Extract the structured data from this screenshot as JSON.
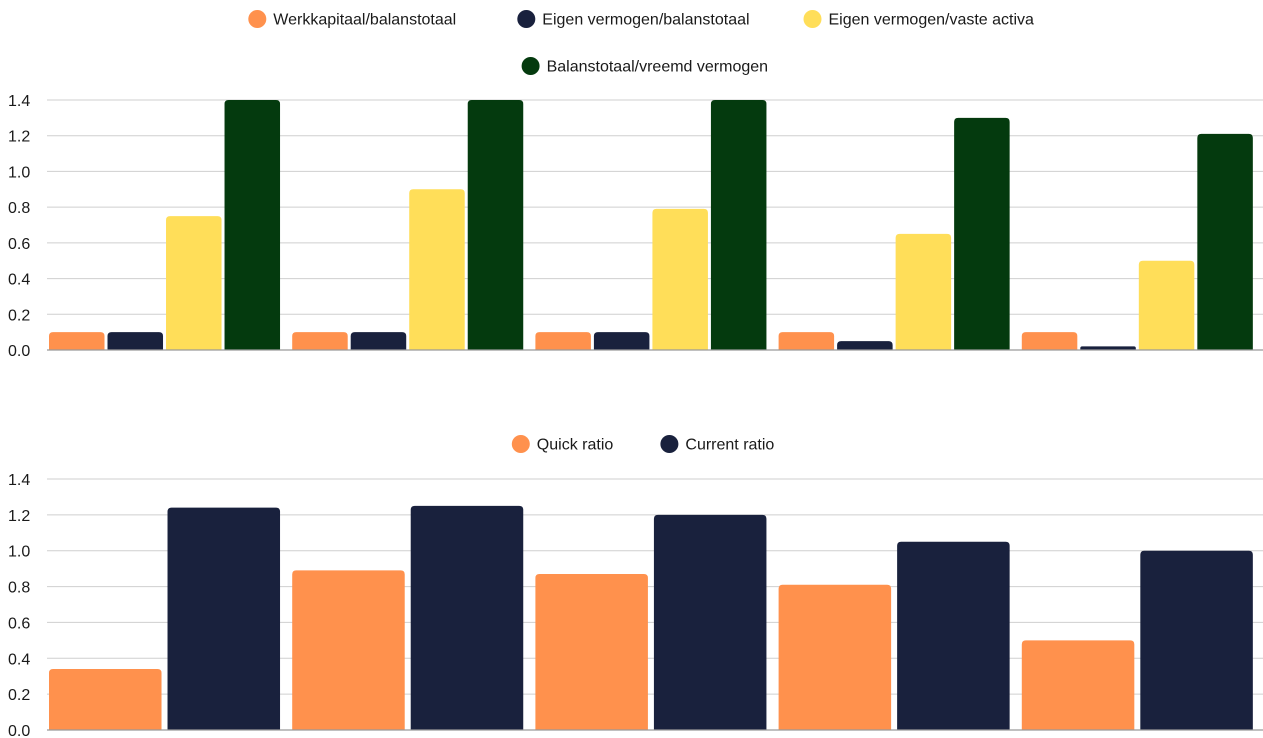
{
  "chart_data": [
    {
      "type": "bar",
      "categories": [
        "",
        "",
        "",
        "",
        ""
      ],
      "series": [
        {
          "name": "Werkkapitaal/balanstotaal",
          "color": "#FF914D",
          "values": [
            0.1,
            0.1,
            0.1,
            0.1,
            0.1
          ]
        },
        {
          "name": "Eigen vermogen/balanstotaal",
          "color": "#19213D",
          "values": [
            0.1,
            0.1,
            0.1,
            0.05,
            0.02
          ]
        },
        {
          "name": "Eigen vermogen/vaste activa",
          "color": "#FFDE59",
          "values": [
            0.75,
            0.9,
            0.79,
            0.65,
            0.5
          ]
        },
        {
          "name": "Balanstotaal/vreemd vermogen",
          "color": "#043A0E",
          "values": [
            1.4,
            1.4,
            1.4,
            1.3,
            1.21
          ]
        }
      ],
      "yticks": [
        "0.0",
        "0.2",
        "0.4",
        "0.6",
        "0.8",
        "1.0",
        "1.2",
        "1.4"
      ],
      "ylim": [
        0,
        1.4
      ],
      "grid": true,
      "legend": "top-center"
    },
    {
      "type": "bar",
      "categories": [
        "",
        "",
        "",
        "",
        ""
      ],
      "series": [
        {
          "name": "Quick ratio",
          "color": "#FF914D",
          "values": [
            0.34,
            0.89,
            0.87,
            0.81,
            0.5
          ]
        },
        {
          "name": "Current ratio",
          "color": "#19213D",
          "values": [
            1.24,
            1.25,
            1.2,
            1.05,
            1.0
          ]
        }
      ],
      "yticks": [
        "0.0",
        "0.2",
        "0.4",
        "0.6",
        "0.8",
        "1.0",
        "1.2",
        "1.4"
      ],
      "ylim": [
        0,
        1.4
      ],
      "grid": true,
      "legend": "top-center"
    }
  ]
}
